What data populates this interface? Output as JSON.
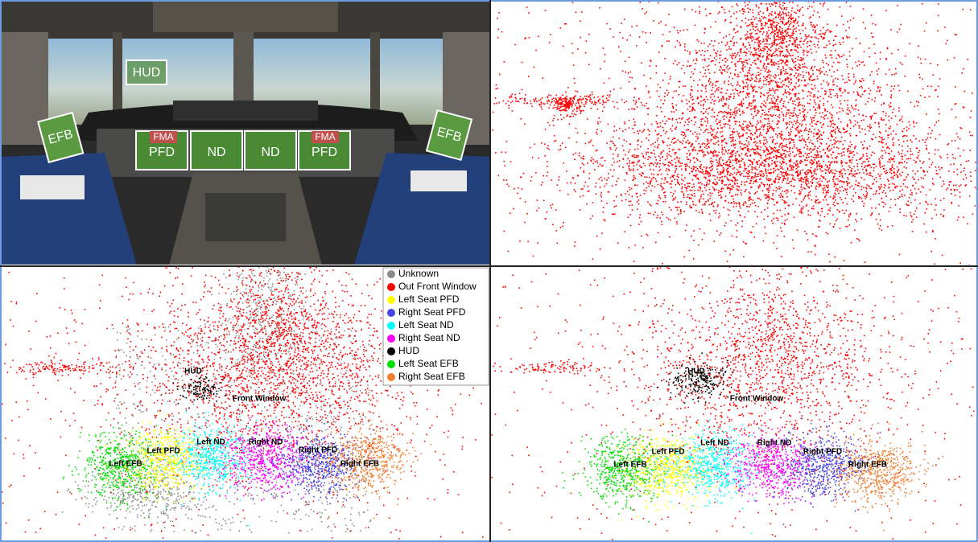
{
  "photo_labels": {
    "hud": "HUD",
    "efb_left": "EFB",
    "efb_right": "EFB",
    "fma_left": "FMA",
    "fma_right": "FMA",
    "pfd_left": "PFD",
    "pfd_right": "PFD",
    "nd_left": "ND",
    "nd_right": "ND"
  },
  "legend": [
    {
      "name": "Unknown",
      "color": "#8c8c8c"
    },
    {
      "name": "Out Front Window",
      "color": "#ff0000"
    },
    {
      "name": "Left Seat PFD",
      "color": "#ffff00"
    },
    {
      "name": "Right Seat PFD",
      "color": "#4646e6"
    },
    {
      "name": "Left Seat ND",
      "color": "#00ffff"
    },
    {
      "name": "Right Seat ND",
      "color": "#ff00ff"
    },
    {
      "name": "HUD",
      "color": "#000000"
    },
    {
      "name": "Left Seat EFB",
      "color": "#00e000"
    },
    {
      "name": "Right Seat EFB",
      "color": "#f08030"
    }
  ],
  "plot_left_labels": [
    "HUD",
    "Front Window",
    "Left EFB",
    "Left PFD",
    "Left ND",
    "Right ND",
    "Right PFD",
    "Right EFB"
  ],
  "plot_right_labels": [
    "HUD",
    "Front Window",
    "Left EFB",
    "Left PFD",
    "Left ND",
    "Right ND",
    "Right PFD",
    "Right EFB"
  ]
}
